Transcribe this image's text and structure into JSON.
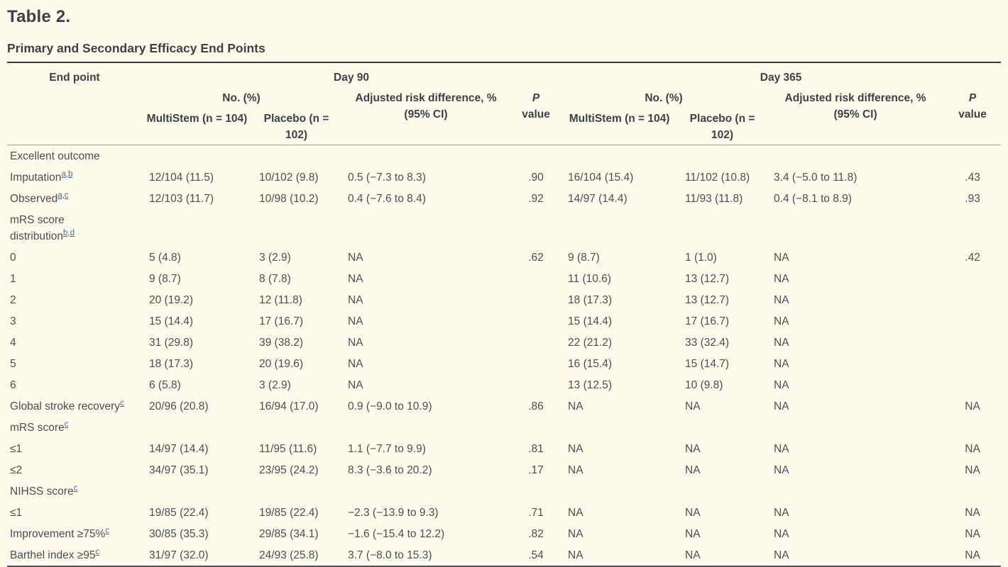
{
  "header": {
    "title": "Table 2.",
    "subtitle": "Primary and Secondary Efficacy End Points"
  },
  "colors": {
    "background": "#fffbec",
    "heading_text": "#3d4145",
    "body_text": "#4a4e52",
    "footnote_link": "#456f8c",
    "rule_top": "#36393b",
    "rule_header": "#a9a59b",
    "rule_bottom": "#505356"
  },
  "table": {
    "endpoint_header": "End point",
    "day90_header": "Day 90",
    "day365_header": "Day 365",
    "no_pct_header": "No. (%)",
    "risk_diff_line1": "Adjusted risk difference, %",
    "risk_diff_line2": "(95% CI)",
    "p_header_italic": "P",
    "p_header_rest": "value",
    "multistem_header": "MultiStem (n = 104)",
    "placebo_header": "Placebo (n = 102)",
    "rows": [
      {
        "label_lines": [
          "Excellent outcome"
        ],
        "sups": [],
        "cells": [
          "",
          "",
          "",
          "",
          "",
          "",
          "",
          ""
        ]
      },
      {
        "label_lines": [
          "Imputation"
        ],
        "sups": [
          "a",
          "b"
        ],
        "cells": [
          "12/104 (11.5)",
          "10/102 (9.8)",
          "0.5 (−7.3 to 8.3)",
          ".90",
          "16/104 (15.4)",
          "11/102 (10.8)",
          "3.4 (−5.0 to 11.8)",
          ".43"
        ]
      },
      {
        "label_lines": [
          "Observed"
        ],
        "sups": [
          "a",
          "c"
        ],
        "cells": [
          "12/103 (11.7)",
          "10/98 (10.2)",
          "0.4 (−7.6 to 8.4)",
          ".92",
          "14/97 (14.4)",
          "11/93 (11.8)",
          "0.4 (−8.1 to 8.9)",
          ".93"
        ]
      },
      {
        "label_lines": [
          "mRS score",
          "distribution"
        ],
        "sups": [
          "b",
          "d"
        ],
        "cells": [
          "",
          "",
          "",
          "",
          "",
          "",
          "",
          ""
        ]
      },
      {
        "label_lines": [
          "0"
        ],
        "sups": [],
        "cells": [
          "5 (4.8)",
          "3 (2.9)",
          "NA",
          ".62",
          "9 (8.7)",
          "1 (1.0)",
          "NA",
          ".42"
        ]
      },
      {
        "label_lines": [
          "1"
        ],
        "sups": [],
        "cells": [
          "9 (8.7)",
          "8 (7.8)",
          "NA",
          "",
          "11 (10.6)",
          "13 (12.7)",
          "NA",
          ""
        ]
      },
      {
        "label_lines": [
          "2"
        ],
        "sups": [],
        "cells": [
          "20 (19.2)",
          "12 (11.8)",
          "NA",
          "",
          "18 (17.3)",
          "13 (12.7)",
          "NA",
          ""
        ]
      },
      {
        "label_lines": [
          "3"
        ],
        "sups": [],
        "cells": [
          "15 (14.4)",
          "17 (16.7)",
          "NA",
          "",
          "15 (14.4)",
          "17 (16.7)",
          "NA",
          ""
        ]
      },
      {
        "label_lines": [
          "4"
        ],
        "sups": [],
        "cells": [
          "31 (29.8)",
          "39 (38.2)",
          "NA",
          "",
          "22 (21.2)",
          "33 (32.4)",
          "NA",
          ""
        ]
      },
      {
        "label_lines": [
          "5"
        ],
        "sups": [],
        "cells": [
          "18 (17.3)",
          "20 (19.6)",
          "NA",
          "",
          "16 (15.4)",
          "15 (14.7)",
          "NA",
          ""
        ]
      },
      {
        "label_lines": [
          "6"
        ],
        "sups": [],
        "cells": [
          "6 (5.8)",
          "3 (2.9)",
          "NA",
          "",
          "13 (12.5)",
          "10 (9.8)",
          "NA",
          ""
        ]
      },
      {
        "label_lines": [
          "Global stroke recovery"
        ],
        "sups": [
          "c"
        ],
        "cells": [
          "20/96 (20.8)",
          "16/94 (17.0)",
          "0.9 (−9.0 to 10.9)",
          ".86",
          "NA",
          "NA",
          "NA",
          "NA"
        ]
      },
      {
        "label_lines": [
          "mRS score"
        ],
        "sups": [
          "c"
        ],
        "cells": [
          "",
          "",
          "",
          "",
          "",
          "",
          "",
          ""
        ]
      },
      {
        "label_lines": [
          "≤1"
        ],
        "sups": [],
        "cells": [
          "14/97 (14.4)",
          "11/95 (11.6)",
          "1.1 (−7.7 to 9.9)",
          ".81",
          "NA",
          "NA",
          "NA",
          "NA"
        ]
      },
      {
        "label_lines": [
          "≤2"
        ],
        "sups": [],
        "cells": [
          "34/97 (35.1)",
          "23/95 (24.2)",
          "8.3 (−3.6 to 20.2)",
          ".17",
          "NA",
          "NA",
          "NA",
          "NA"
        ]
      },
      {
        "label_lines": [
          "NIHSS score"
        ],
        "sups": [
          "c"
        ],
        "cells": [
          "",
          "",
          "",
          "",
          "",
          "",
          "",
          ""
        ]
      },
      {
        "label_lines": [
          "≤1"
        ],
        "sups": [],
        "cells": [
          "19/85 (22.4)",
          "19/85 (22.4)",
          "−2.3 (−13.9 to 9.3)",
          ".71",
          "NA",
          "NA",
          "NA",
          "NA"
        ]
      },
      {
        "label_lines": [
          "Improvement ≥75%"
        ],
        "sups": [
          "c"
        ],
        "cells": [
          "30/85 (35.3)",
          "29/85 (34.1)",
          "−1.6 (−15.4 to 12.2)",
          ".82",
          "NA",
          "NA",
          "NA",
          "NA"
        ]
      },
      {
        "label_lines": [
          "Barthel index ≥95"
        ],
        "sups": [
          "c"
        ],
        "cells": [
          "31/97 (32.0)",
          "24/93 (25.8)",
          "3.7 (−8.0 to 15.3)",
          ".54",
          "NA",
          "NA",
          "NA",
          "NA"
        ]
      }
    ]
  }
}
